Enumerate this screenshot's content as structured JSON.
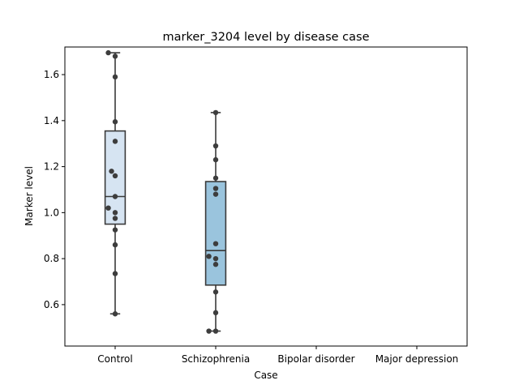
{
  "chart_data": {
    "type": "box",
    "title": "marker_3204 level by disease case",
    "xlabel": "Case",
    "ylabel": "Marker level",
    "categories": [
      "Control",
      "Schizophrenia",
      "Bipolar disorder",
      "Major depression"
    ],
    "ylim": [
      0.42,
      1.72
    ],
    "yticks": [
      0.6,
      0.8,
      1.0,
      1.2,
      1.4,
      1.6
    ],
    "ytick_labels": [
      "0.6",
      "0.8",
      "1.0",
      "1.2",
      "1.4",
      "1.6"
    ],
    "grid": false,
    "colors": {
      "box": [
        "#d6e4f2",
        "#9ac4dd",
        "#9ac4dd",
        "#9ac4dd"
      ],
      "edge": "#3a3a3a",
      "point": "#3d3d3d"
    },
    "boxes": [
      {
        "category": "Control",
        "whisker_low": 0.56,
        "q1": 0.95,
        "median": 1.07,
        "q3": 1.355,
        "whisker_high": 1.695
      },
      {
        "category": "Schizophrenia",
        "whisker_low": 0.485,
        "q1": 0.685,
        "median": 0.835,
        "q3": 1.135,
        "whisker_high": 1.435
      },
      null,
      null
    ],
    "points": [
      [
        {
          "x": -0.17,
          "y": 1.695
        },
        {
          "x": 0.0,
          "y": 1.68
        },
        {
          "x": 0.0,
          "y": 1.59
        },
        {
          "x": 0.0,
          "y": 1.395
        },
        {
          "x": 0.0,
          "y": 1.31
        },
        {
          "x": -0.09,
          "y": 1.18
        },
        {
          "x": 0.0,
          "y": 1.16
        },
        {
          "x": 0.0,
          "y": 1.07
        },
        {
          "x": -0.17,
          "y": 1.02
        },
        {
          "x": 0.0,
          "y": 1.0
        },
        {
          "x": 0.0,
          "y": 0.975
        },
        {
          "x": 0.0,
          "y": 0.925
        },
        {
          "x": 0.0,
          "y": 0.86
        },
        {
          "x": 0.0,
          "y": 0.735
        },
        {
          "x": 0.0,
          "y": 0.56
        }
      ],
      [
        {
          "x": 0.0,
          "y": 1.435
        },
        {
          "x": 0.0,
          "y": 1.29
        },
        {
          "x": 0.0,
          "y": 1.23
        },
        {
          "x": 0.0,
          "y": 1.15
        },
        {
          "x": 0.0,
          "y": 1.105
        },
        {
          "x": 0.0,
          "y": 1.08
        },
        {
          "x": 0.0,
          "y": 0.865
        },
        {
          "x": -0.17,
          "y": 0.81
        },
        {
          "x": 0.0,
          "y": 0.8
        },
        {
          "x": 0.0,
          "y": 0.775
        },
        {
          "x": 0.0,
          "y": 0.655
        },
        {
          "x": 0.0,
          "y": 0.565
        },
        {
          "x": -0.17,
          "y": 0.485
        },
        {
          "x": 0.0,
          "y": 0.485
        }
      ],
      [],
      []
    ]
  }
}
